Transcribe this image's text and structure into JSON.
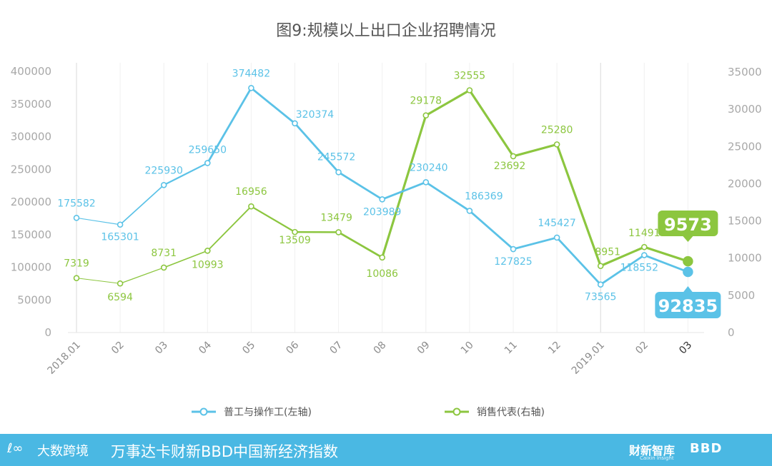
{
  "chart_data": {
    "type": "line",
    "title": "图9:规模以上出口企业招聘情况",
    "categories": [
      "2018.01",
      "02",
      "03",
      "04",
      "05",
      "06",
      "07",
      "08",
      "09",
      "10",
      "11",
      "12",
      "2019.01",
      "02",
      "03"
    ],
    "left_axis": {
      "ylim": [
        0,
        400000
      ],
      "ticks": [
        "0",
        "50000",
        "100000",
        "150000",
        "200000",
        "250000",
        "300000",
        "350000",
        "400000"
      ]
    },
    "right_axis": {
      "ylim": [
        0,
        35000
      ],
      "ticks": [
        "0",
        "5000",
        "10000",
        "15000",
        "20000",
        "25000",
        "30000",
        "35000"
      ]
    },
    "grid": true,
    "series": [
      {
        "name": "普工与操作工(左轴)",
        "axis": "left",
        "color": "#5bc2e7",
        "values": [
          175582,
          165301,
          225930,
          259650,
          374482,
          320374,
          245572,
          203989,
          230240,
          186369,
          127825,
          145427,
          73565,
          118552,
          92835
        ]
      },
      {
        "name": "销售代表(右轴)",
        "axis": "right",
        "color": "#8cc63f",
        "values": [
          7319,
          6594,
          8731,
          10993,
          16956,
          13509,
          13479,
          10086,
          29178,
          32555,
          23692,
          25280,
          8951,
          11491,
          9573
        ]
      }
    ],
    "callouts": {
      "left_last": "92835",
      "right_last": "9573"
    },
    "legend_position": "bottom"
  },
  "footer": {
    "brand_logo": "大数跨境",
    "text": "万事达卡财新BBD中国新经济指数",
    "right_logo1": "财新智库",
    "right_logo1_sub": "Caixin Insight",
    "right_logo2": "BBD"
  }
}
